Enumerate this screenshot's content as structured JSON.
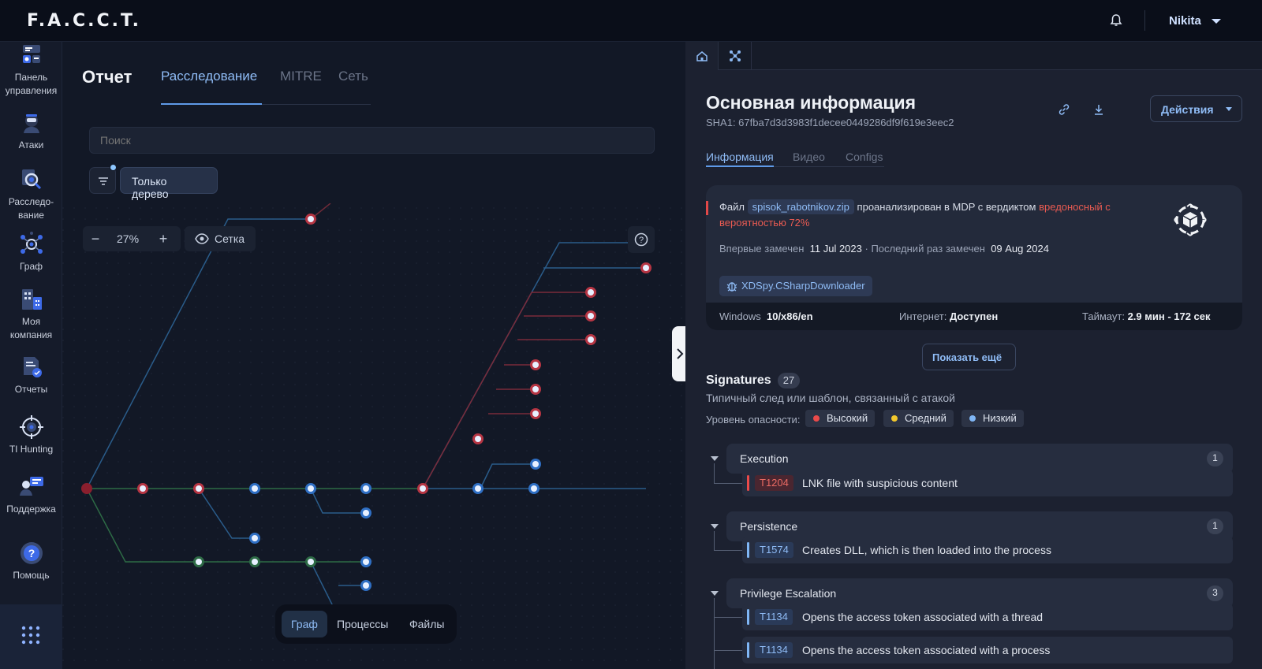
{
  "brand": "F.A.C.C.T.",
  "user": "Nikita",
  "sidebar": {
    "items": [
      {
        "label": "Панель управления"
      },
      {
        "label": "Атаки"
      },
      {
        "label": "Расследо-вание"
      },
      {
        "label": "Граф"
      },
      {
        "label": "Моя компания"
      },
      {
        "label": "Отчеты"
      },
      {
        "label": "TI Hunting"
      },
      {
        "label": "Поддержка"
      },
      {
        "label": "Помощь"
      }
    ]
  },
  "left": {
    "title": "Отчет",
    "tabs": [
      "Расследование",
      "MITRE",
      "Сеть"
    ],
    "search_placeholder": "Поиск",
    "tree_only": "Только дерево",
    "zoom": "27%",
    "grid": "Сетка",
    "bottom_tabs": [
      "Граф",
      "Процессы",
      "Файлы"
    ]
  },
  "right": {
    "title": "Основная информация",
    "sha": "SHA1: 67fba7d3d3983f1decee0449286df9f619e3eec2",
    "actions": "Действия",
    "subtabs": [
      "Информация",
      "Видео",
      "Configs"
    ],
    "card": {
      "prefix": "Файл",
      "file": "spisok_rabotnikov.zip",
      "middle": "проанализирован в MDP с вердиктом",
      "verdict": "вредоносный с вероятностью 72%",
      "first_seen_label": "Впервые замечен",
      "first_seen": "11 Jul 2023",
      "last_seen_label": "· Последний раз замечен",
      "last_seen": "09 Aug 2024",
      "family": "XDSpy.CSharpDownloader",
      "os_label": "Windows",
      "os": "10/x86/en",
      "internet_label": "Интернет:",
      "internet": "Доступен",
      "timeout_label": "Таймаут:",
      "timeout": "2.9 мин - 172 сек"
    },
    "show_more": "Показать ещё",
    "signatures": {
      "title": "Signatures",
      "count": "27",
      "subtitle": "Типичный след или шаблон, связанный с атакой",
      "level_label": "Уровень опасности:",
      "levels": [
        {
          "label": "Высокий",
          "color": "#ea4a4a"
        },
        {
          "label": "Средний",
          "color": "#f2c82c"
        },
        {
          "label": "Низкий",
          "color": "#7fb6f5"
        }
      ],
      "categories": [
        {
          "name": "Execution",
          "count": "1"
        },
        {
          "name": "Persistence",
          "count": "1"
        },
        {
          "name": "Privilege Escalation",
          "count": "3"
        }
      ],
      "items": [
        {
          "id": "T1204",
          "name": "LNK file with suspicious content",
          "level": "high"
        },
        {
          "id": "T1574",
          "name": "Creates DLL, which is then loaded into the process",
          "level": "low"
        },
        {
          "id": "T1134",
          "name": "Opens the access token associated with a thread",
          "level": "low"
        },
        {
          "id": "T1134",
          "name": "Opens the access token associated with a process",
          "level": "low"
        }
      ]
    }
  }
}
